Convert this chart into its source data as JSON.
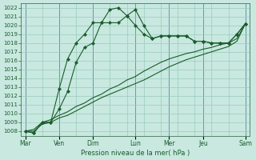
{
  "xlabel": "Pression niveau de la mer( hPa )",
  "bg_color": "#c8e8e0",
  "grid_color": "#99ccbb",
  "line_color": "#1a5c2a",
  "spine_color": "#447755",
  "ylim": [
    1007.5,
    1022.5
  ],
  "yticks": [
    1008,
    1009,
    1010,
    1011,
    1012,
    1013,
    1014,
    1015,
    1016,
    1017,
    1018,
    1019,
    1020,
    1021,
    1022
  ],
  "xtick_labels": [
    "Mar",
    "Ven",
    "Dim",
    "",
    "Lun",
    "",
    "Mer",
    "",
    "Jeu",
    "",
    "",
    "",
    "Sam"
  ],
  "day_labels": [
    "Mar",
    "Ven",
    "Dim",
    "Lun",
    "Mer",
    "Jeu",
    "Sam"
  ],
  "series_with_markers": [
    [
      1008.0,
      1007.8,
      1009.0,
      1009.0,
      1012.8,
      1016.2,
      1018.0,
      1019.0,
      1020.3,
      1020.3,
      1021.8,
      1022.0,
      1021.1,
      1020.0,
      1019.0,
      1018.5,
      1018.8,
      1018.8,
      1018.8,
      1018.8,
      1018.2,
      1018.2,
      1018.0,
      1018.0,
      1018.0,
      1019.0,
      1020.2
    ],
    [
      1008.0,
      1007.8,
      1009.0,
      1009.0,
      1010.5,
      1012.5,
      1015.8,
      1017.5,
      1018.0,
      1020.3,
      1020.3,
      1020.3,
      1021.1,
      1021.8,
      1020.0,
      1018.5,
      1018.8,
      1018.8,
      1018.8,
      1018.8,
      1018.2,
      1018.2,
      1018.0,
      1018.0,
      1018.0,
      1019.0,
      1020.2
    ]
  ],
  "series_plain": [
    [
      1008.0,
      1008.2,
      1009.0,
      1009.3,
      1009.8,
      1010.2,
      1010.8,
      1011.2,
      1011.8,
      1012.2,
      1012.8,
      1013.2,
      1013.8,
      1014.2,
      1014.8,
      1015.3,
      1015.8,
      1016.2,
      1016.5,
      1016.8,
      1017.0,
      1017.3,
      1017.5,
      1017.8,
      1018.0,
      1018.5,
      1020.2
    ],
    [
      1008.0,
      1008.0,
      1008.8,
      1009.0,
      1009.5,
      1009.8,
      1010.3,
      1010.8,
      1011.3,
      1011.8,
      1012.2,
      1012.6,
      1013.0,
      1013.4,
      1013.8,
      1014.3,
      1014.8,
      1015.3,
      1015.7,
      1016.1,
      1016.4,
      1016.7,
      1017.0,
      1017.3,
      1017.6,
      1018.2,
      1020.2
    ]
  ],
  "n_points": 27,
  "day_x_positions": [
    0,
    4,
    8,
    13,
    17,
    21,
    26
  ],
  "xlim": [
    -0.5,
    26.5
  ]
}
